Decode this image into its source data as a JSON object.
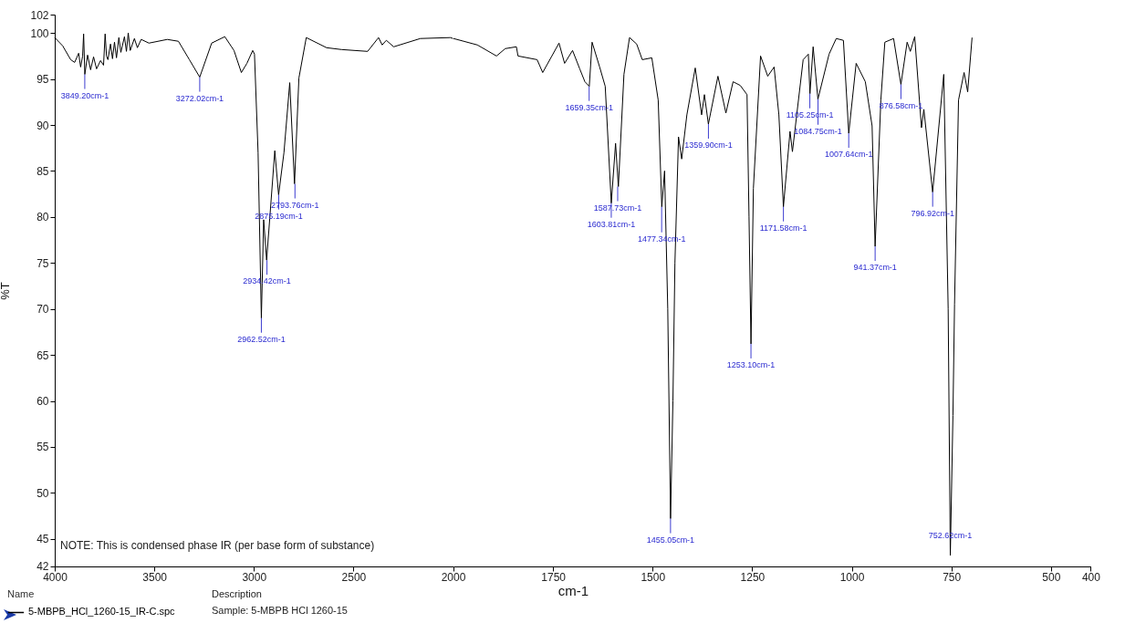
{
  "chart_data": [
    {
      "type": "line",
      "ylabel": "%T",
      "legend_title": "Name",
      "legend": "bottom",
      "marker": "none",
      "line_style": "solid",
      "grid": false,
      "xlim": [
        4000,
        2000
      ],
      "xticks": [
        4000,
        3500,
        3000,
        2500,
        2000
      ],
      "ylim": [
        42,
        102
      ],
      "yticks": [
        42,
        45,
        50,
        55,
        60,
        65,
        70,
        75,
        80,
        85,
        90,
        95,
        100,
        102
      ],
      "x": [
        4000,
        3960,
        3920,
        3900,
        3880,
        3870,
        3860,
        3855,
        3849,
        3835,
        3820,
        3805,
        3790,
        3770,
        3755,
        3747,
        3740,
        3733,
        3720,
        3710,
        3700,
        3690,
        3678,
        3668,
        3650,
        3640,
        3631,
        3621,
        3600,
        3585,
        3566,
        3527,
        3435,
        3379,
        3324,
        3272,
        3212,
        3146,
        3100,
        3063,
        3035,
        3006,
        2997,
        2979,
        2962.5,
        2951,
        2936,
        2895,
        2876,
        2849,
        2820,
        2796,
        2774,
        2737,
        2635,
        2560,
        2429,
        2374,
        2356,
        2335,
        2298,
        2164,
        2014,
        2000
      ],
      "series": [
        {
          "name": "5-MBPB_HCl_1260-15_IR-C.spc",
          "color": "#000000",
          "values": [
            99.5,
            98.6,
            97.1,
            96.8,
            97.8,
            96.3,
            97.5,
            99.9,
            95.5,
            97.6,
            96.0,
            97.4,
            96.1,
            97.0,
            96.5,
            99.9,
            97.5,
            97.1,
            98.8,
            97.2,
            99.0,
            97.3,
            99.5,
            97.9,
            99.6,
            98.0,
            100.0,
            98.1,
            99.4,
            98.4,
            99.3,
            98.9,
            99.3,
            99.1,
            97.1,
            95.2,
            98.9,
            99.6,
            98.1,
            95.7,
            96.7,
            98.1,
            97.7,
            87.0,
            69.0,
            79.7,
            75.3,
            87.2,
            82.4,
            87.0,
            94.6,
            83.6,
            95.1,
            99.5,
            98.4,
            98.2,
            98.0,
            99.5,
            98.7,
            99.2,
            98.5,
            99.4,
            99.5,
            99.4
          ]
        }
      ],
      "annotations": [
        "NOTE: This is condensed phase IR (per base form of substance)",
        "Description",
        "Sample: 5-MBPB HCl 1260-15",
        {
          "text": "3849.20cm-1",
          "x": 3849.2,
          "y": 95.5
        },
        {
          "text": "3272.02cm-1",
          "x": 3272.02,
          "y": 95.2
        },
        {
          "text": "2962.52cm-1",
          "x": 2962.52,
          "y": 69.0
        },
        {
          "text": "2934.42cm-1",
          "x": 2934.42,
          "y": 75.3
        },
        {
          "text": "2875.19cm-1",
          "x": 2875.19,
          "y": 82.4
        },
        {
          "text": "2793.76cm-1",
          "x": 2793.76,
          "y": 83.6
        }
      ]
    },
    {
      "type": "line",
      "xlabel": "cm-1",
      "marker": "none",
      "line_style": "solid",
      "grid": false,
      "tick_labels": "x",
      "xlim": [
        2000,
        400
      ],
      "xticks": [
        1750,
        1500,
        1250,
        1000,
        750,
        500,
        400
      ],
      "ylim": [
        42,
        102
      ],
      "yticks": [
        42,
        45,
        50,
        55,
        60,
        65,
        70,
        75,
        80,
        85,
        90,
        95,
        100,
        102
      ],
      "x": [
        2000,
        1940,
        1892,
        1870,
        1842,
        1838,
        1790,
        1776,
        1735,
        1721,
        1701,
        1683,
        1670,
        1659,
        1652,
        1633,
        1619,
        1603.8,
        1593,
        1586,
        1572,
        1558,
        1540,
        1526,
        1502,
        1486,
        1477,
        1470,
        1462,
        1455,
        1449,
        1444,
        1435,
        1427,
        1414,
        1393,
        1377,
        1370,
        1360,
        1336,
        1316,
        1298,
        1280,
        1263,
        1258,
        1253,
        1247,
        1229,
        1211,
        1195,
        1183,
        1171.6,
        1155,
        1149,
        1122,
        1109,
        1105,
        1097,
        1085,
        1057,
        1039,
        1021,
        1007.6,
        989,
        966,
        949,
        941.4,
        927,
        917,
        895,
        876.6,
        861,
        853,
        842,
        825,
        819,
        797,
        769,
        758,
        752.6,
        746,
        742,
        732,
        718,
        709,
        698
      ],
      "series": [
        {
          "color": "#000000",
          "values": [
            99.4,
            98.7,
            97.5,
            98.3,
            98.5,
            97.5,
            97.1,
            95.7,
            98.9,
            96.7,
            98.1,
            96.1,
            94.7,
            94.2,
            99.0,
            96.3,
            94.2,
            81.5,
            88.0,
            83.3,
            95.5,
            99.5,
            98.8,
            97.1,
            97.3,
            92.7,
            81.1,
            85.0,
            70.0,
            47.2,
            60.0,
            75.0,
            88.7,
            86.3,
            91.1,
            96.2,
            91.1,
            93.3,
            90.1,
            95.3,
            91.3,
            94.7,
            94.3,
            93.3,
            80.0,
            66.2,
            83.1,
            97.5,
            95.3,
            96.3,
            91.1,
            81.1,
            89.3,
            87.1,
            97.1,
            97.7,
            93.4,
            98.5,
            92.8,
            97.7,
            99.4,
            99.2,
            89.1,
            96.7,
            94.7,
            89.9,
            76.8,
            92.7,
            99.0,
            99.4,
            94.4,
            99.0,
            98.0,
            99.6,
            89.7,
            91.7,
            82.7,
            95.5,
            70.0,
            43.2,
            58.4,
            70.5,
            92.7,
            95.7,
            93.6,
            99.5
          ]
        }
      ],
      "annotations": [
        {
          "text": "1659.35cm-1",
          "x": 1659.35,
          "y": 94.2
        },
        {
          "text": "1603.81cm-1",
          "x": 1603.81,
          "y": 81.5
        },
        {
          "text": "1587.73cm-1",
          "x": 1587.73,
          "y": 83.3
        },
        {
          "text": "1477.34cm-1",
          "x": 1477.34,
          "y": 81.1
        },
        {
          "text": "1455.05cm-1",
          "x": 1455.05,
          "y": 47.2
        },
        {
          "text": "1359.90cm-1",
          "x": 1359.9,
          "y": 90.1
        },
        {
          "text": "1253.10cm-1",
          "x": 1253.1,
          "y": 66.2
        },
        {
          "text": "1171.58cm-1",
          "x": 1171.58,
          "y": 81.1
        },
        {
          "text": "1105.25cm-1",
          "x": 1105.25,
          "y": 93.4
        },
        {
          "text": "1084.75cm-1",
          "x": 1084.75,
          "y": 92.8
        },
        {
          "text": "1007.64cm-1",
          "x": 1007.64,
          "y": 89.1
        },
        {
          "text": "941.37cm-1",
          "x": 941.37,
          "y": 76.8
        },
        {
          "text": "876.58cm-1",
          "x": 876.58,
          "y": 94.4
        },
        {
          "text": "796.92cm-1",
          "x": 796.92,
          "y": 82.7
        },
        {
          "text": "752.62cm-1",
          "x": 752.62,
          "y": 43.2
        }
      ]
    }
  ]
}
